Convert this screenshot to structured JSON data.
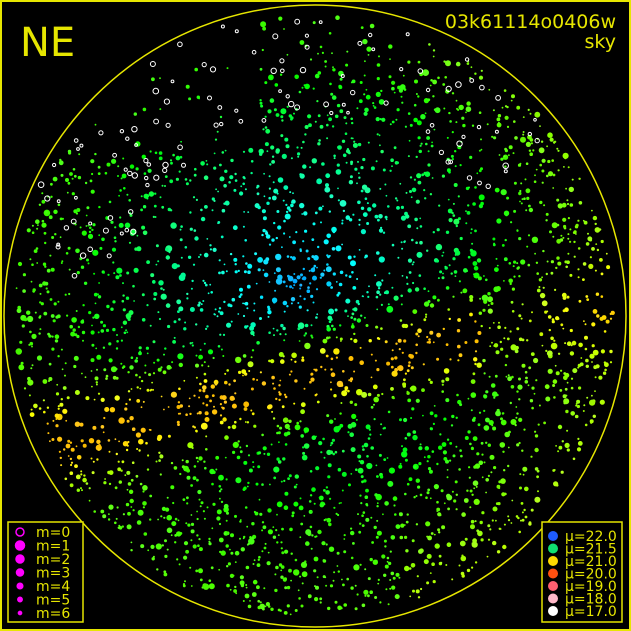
{
  "chart_data": {
    "type": "scatter",
    "corner_label": "NE",
    "title": "03k61114o0406w",
    "subtitle": "sky",
    "size_legend": [
      {
        "label": "m=0",
        "hollow": true
      },
      {
        "label": "m=1"
      },
      {
        "label": "m=2"
      },
      {
        "label": "m=3"
      },
      {
        "label": "m=4"
      },
      {
        "label": "m=5"
      },
      {
        "label": "m=6"
      }
    ],
    "color_legend": [
      {
        "label": "μ=22.0",
        "color": "#1e5cff"
      },
      {
        "label": "μ=21.5",
        "color": "#10e070"
      },
      {
        "label": "μ=21.0",
        "color": "#ffd800"
      },
      {
        "label": "μ=20.0",
        "color": "#ff5010"
      },
      {
        "label": "μ=19.0",
        "color": "#ff6070"
      },
      {
        "label": "μ=18.0",
        "color": "#ffb8c8"
      },
      {
        "label": "μ=17.0",
        "color": "#ffffff"
      }
    ],
    "colors": {
      "frame": "#e6e600",
      "size_legend_marker": "#ff00ff",
      "background": "#000000"
    }
  }
}
